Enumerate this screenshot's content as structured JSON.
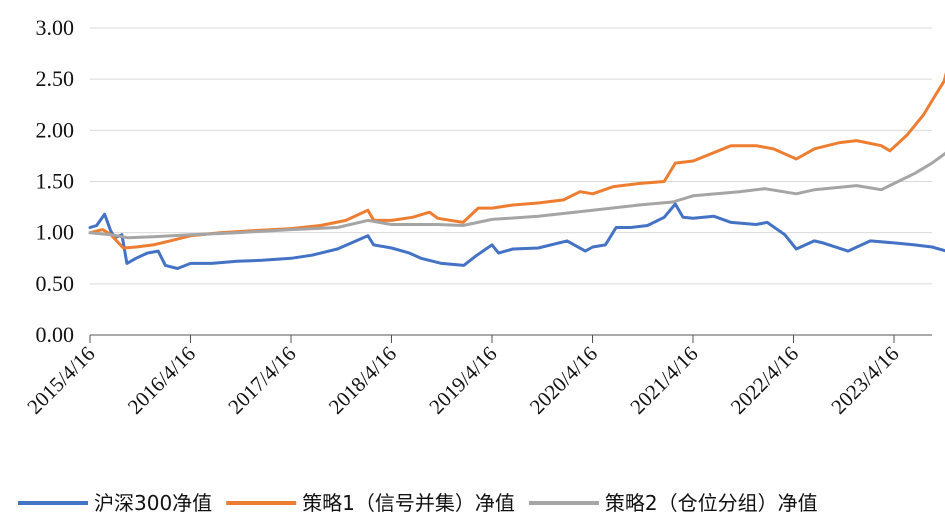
{
  "chart_data": {
    "type": "line",
    "title": "",
    "xlabel": "",
    "ylabel": "",
    "ylim": [
      0.0,
      3.0
    ],
    "yticks": [
      "0.00",
      "0.50",
      "1.00",
      "1.50",
      "2.00",
      "2.50",
      "3.00"
    ],
    "xticks": [
      "2015/4/16",
      "2016/4/16",
      "2017/4/16",
      "2018/4/16",
      "2019/4/16",
      "2020/4/16",
      "2021/4/16",
      "2022/4/16",
      "2023/4/16"
    ],
    "grid": "horizontal",
    "legend_position": "bottom",
    "series": [
      {
        "name": "沪深300净值",
        "color": "#4472c4",
        "points": [
          [
            "2015/4/16",
            1.05
          ],
          [
            "2015/5/10",
            1.07
          ],
          [
            "2015/6/8",
            1.18
          ],
          [
            "2015/6/30",
            1.02
          ],
          [
            "2015/7/15",
            0.95
          ],
          [
            "2015/8/10",
            0.98
          ],
          [
            "2015/8/28",
            0.7
          ],
          [
            "2015/9/30",
            0.75
          ],
          [
            "2015/11/10",
            0.8
          ],
          [
            "2015/12/20",
            0.82
          ],
          [
            "2016/1/15",
            0.68
          ],
          [
            "2016/2/28",
            0.65
          ],
          [
            "2016/4/16",
            0.7
          ],
          [
            "2016/7/1",
            0.7
          ],
          [
            "2016/10/1",
            0.72
          ],
          [
            "2017/1/1",
            0.73
          ],
          [
            "2017/4/16",
            0.75
          ],
          [
            "2017/7/1",
            0.78
          ],
          [
            "2017/10/1",
            0.84
          ],
          [
            "2018/1/20",
            0.97
          ],
          [
            "2018/2/10",
            0.88
          ],
          [
            "2018/4/16",
            0.85
          ],
          [
            "2018/6/20",
            0.8
          ],
          [
            "2018/8/1",
            0.75
          ],
          [
            "2018/10/15",
            0.7
          ],
          [
            "2019/1/3",
            0.68
          ],
          [
            "2019/2/20",
            0.78
          ],
          [
            "2019/4/16",
            0.88
          ],
          [
            "2019/5/10",
            0.8
          ],
          [
            "2019/7/1",
            0.84
          ],
          [
            "2019/10/1",
            0.85
          ],
          [
            "2020/1/14",
            0.92
          ],
          [
            "2020/3/20",
            0.82
          ],
          [
            "2020/4/16",
            0.86
          ],
          [
            "2020/6/1",
            0.88
          ],
          [
            "2020/7/10",
            1.05
          ],
          [
            "2020/9/1",
            1.05
          ],
          [
            "2020/11/1",
            1.07
          ],
          [
            "2021/1/1",
            1.15
          ],
          [
            "2021/2/10",
            1.28
          ],
          [
            "2021/3/10",
            1.15
          ],
          [
            "2021/4/16",
            1.14
          ],
          [
            "2021/7/1",
            1.16
          ],
          [
            "2021/9/1",
            1.1
          ],
          [
            "2021/12/1",
            1.08
          ],
          [
            "2022/1/10",
            1.1
          ],
          [
            "2022/3/15",
            0.98
          ],
          [
            "2022/4/26",
            0.84
          ],
          [
            "2022/6/30",
            0.92
          ],
          [
            "2022/8/1",
            0.9
          ],
          [
            "2022/10/31",
            0.82
          ],
          [
            "2023/1/20",
            0.92
          ],
          [
            "2023/4/16",
            0.9
          ],
          [
            "2023/6/30",
            0.88
          ],
          [
            "2023/9/1",
            0.86
          ],
          [
            "2023/10/23",
            0.82
          ],
          [
            "2023/11/15",
            0.84
          ]
        ]
      },
      {
        "name": "策略1（信号并集）净值",
        "color": "#ed7d31",
        "points": [
          [
            "2015/4/16",
            1.0
          ],
          [
            "2015/6/1",
            1.03
          ],
          [
            "2015/7/1",
            0.98
          ],
          [
            "2015/8/15",
            0.85
          ],
          [
            "2015/10/1",
            0.86
          ],
          [
            "2015/12/1",
            0.88
          ],
          [
            "2016/2/1",
            0.92
          ],
          [
            "2016/4/16",
            0.97
          ],
          [
            "2016/8/1",
            1.0
          ],
          [
            "2016/12/1",
            1.02
          ],
          [
            "2017/4/16",
            1.04
          ],
          [
            "2017/8/1",
            1.07
          ],
          [
            "2017/11/1",
            1.12
          ],
          [
            "2018/1/20",
            1.22
          ],
          [
            "2018/2/10",
            1.12
          ],
          [
            "2018/4/16",
            1.12
          ],
          [
            "2018/7/1",
            1.15
          ],
          [
            "2018/9/1",
            1.2
          ],
          [
            "2018/10/1",
            1.14
          ],
          [
            "2019/1/1",
            1.1
          ],
          [
            "2019/2/25",
            1.24
          ],
          [
            "2019/4/16",
            1.24
          ],
          [
            "2019/7/1",
            1.27
          ],
          [
            "2019/10/1",
            1.29
          ],
          [
            "2020/1/1",
            1.32
          ],
          [
            "2020/3/1",
            1.4
          ],
          [
            "2020/4/16",
            1.38
          ],
          [
            "2020/7/1",
            1.45
          ],
          [
            "2020/10/1",
            1.48
          ],
          [
            "2021/1/1",
            1.5
          ],
          [
            "2021/2/10",
            1.68
          ],
          [
            "2021/4/16",
            1.7
          ],
          [
            "2021/9/1",
            1.85
          ],
          [
            "2021/12/1",
            1.85
          ],
          [
            "2022/2/1",
            1.82
          ],
          [
            "2022/4/26",
            1.72
          ],
          [
            "2022/7/1",
            1.82
          ],
          [
            "2022/10/1",
            1.88
          ],
          [
            "2022/12/1",
            1.9
          ],
          [
            "2023/3/1",
            1.85
          ],
          [
            "2023/4/1",
            1.8
          ],
          [
            "2023/6/1",
            1.95
          ],
          [
            "2023/8/1",
            2.15
          ],
          [
            "2023/9/15",
            2.35
          ],
          [
            "2023/10/15",
            2.48
          ],
          [
            "2023/11/1",
            2.65
          ],
          [
            "2023/11/15",
            2.45
          ]
        ]
      },
      {
        "name": "策略2（仓位分组）净值",
        "color": "#a5a5a5",
        "points": [
          [
            "2015/4/16",
            1.0
          ],
          [
            "2015/7/1",
            0.98
          ],
          [
            "2015/9/1",
            0.95
          ],
          [
            "2015/12/1",
            0.96
          ],
          [
            "2016/4/16",
            0.98
          ],
          [
            "2016/10/1",
            1.0
          ],
          [
            "2017/4/16",
            1.03
          ],
          [
            "2017/10/1",
            1.05
          ],
          [
            "2018/1/20",
            1.12
          ],
          [
            "2018/4/16",
            1.08
          ],
          [
            "2018/10/1",
            1.08
          ],
          [
            "2019/1/1",
            1.07
          ],
          [
            "2019/4/16",
            1.13
          ],
          [
            "2019/10/1",
            1.16
          ],
          [
            "2020/4/16",
            1.22
          ],
          [
            "2020/10/1",
            1.27
          ],
          [
            "2021/2/1",
            1.3
          ],
          [
            "2021/4/16",
            1.36
          ],
          [
            "2021/10/1",
            1.4
          ],
          [
            "2022/1/1",
            1.43
          ],
          [
            "2022/4/26",
            1.38
          ],
          [
            "2022/7/1",
            1.42
          ],
          [
            "2022/12/1",
            1.46
          ],
          [
            "2023/3/1",
            1.42
          ],
          [
            "2023/4/16",
            1.48
          ],
          [
            "2023/7/1",
            1.58
          ],
          [
            "2023/9/1",
            1.68
          ],
          [
            "2023/11/1",
            1.8
          ],
          [
            "2023/11/15",
            1.75
          ]
        ]
      }
    ]
  }
}
